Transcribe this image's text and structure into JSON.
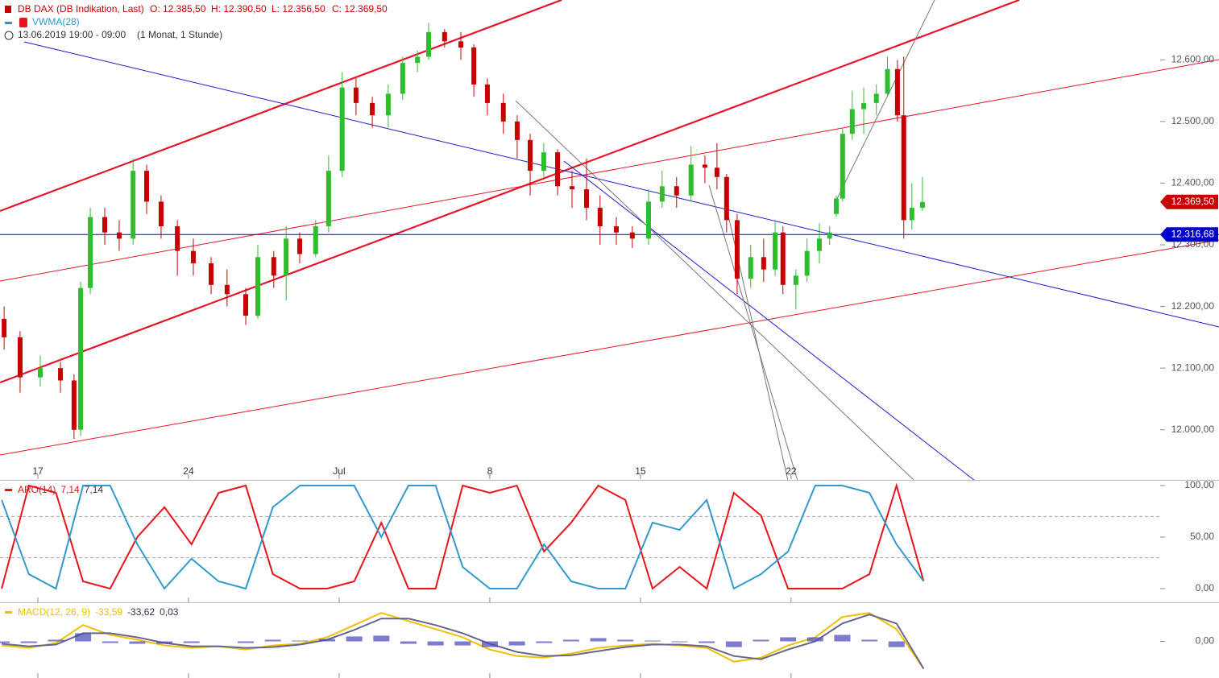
{
  "header": {
    "instrument": "DB DAX (DB Indikation, Last)",
    "open": "O: 12.385,50",
    "high": "H: 12.390,50",
    "low": "L: 12.356,50",
    "close": "C: 12.369,50",
    "overlay": "VWMA(28)",
    "range": "13.06.2019 19:00 - 09:00",
    "period": "(1 Monat, 1 Stunde)"
  },
  "chart_data": [
    {
      "type": "candlestick",
      "up_color": "#2ebd2e",
      "down_color": "#c80000",
      "xlim": [
        -1.26,
        39.2
      ],
      "ylim": [
        11920,
        12697
      ],
      "xticks": [
        {
          "value": 0,
          "label": "17"
        },
        {
          "value": 5,
          "label": "24"
        },
        {
          "value": 10,
          "label": "Jul"
        },
        {
          "value": 15,
          "label": "8"
        },
        {
          "value": 20,
          "label": "15"
        },
        {
          "value": 25,
          "label": "22"
        }
      ],
      "yticks": [
        {
          "value": 12000,
          "label": "12.000,00"
        },
        {
          "value": 12100,
          "label": "12.100,00"
        },
        {
          "value": 12200,
          "label": "12.200,00"
        },
        {
          "value": 12300,
          "label": "12.300,00"
        },
        {
          "value": 12400,
          "label": "12.400,00"
        },
        {
          "value": 12500,
          "label": "12.500,00"
        },
        {
          "value": 12600,
          "label": "12.600,00"
        }
      ],
      "hline": {
        "value": 12316.68,
        "label": "12.316,68",
        "color": "#0000cc"
      },
      "last": {
        "value": 12369.5,
        "label": "12.369,50",
        "color": "#c80000"
      },
      "x": [
        -1.12,
        -0.59,
        0.08,
        0.75,
        1.2,
        1.42,
        1.74,
        2.22,
        2.7,
        3.16,
        3.61,
        4.09,
        4.63,
        5.16,
        5.75,
        6.28,
        6.9,
        7.3,
        7.83,
        8.24,
        8.69,
        9.22,
        9.65,
        10.1,
        10.56,
        11.1,
        11.63,
        12.11,
        12.6,
        12.97,
        13.5,
        14.04,
        14.47,
        14.92,
        15.45,
        15.91,
        16.34,
        16.79,
        17.25,
        17.73,
        18.21,
        18.66,
        19.2,
        19.73,
        20.27,
        20.72,
        21.2,
        21.68,
        22.14,
        22.54,
        22.86,
        23.21,
        23.66,
        24.09,
        24.47,
        24.73,
        25.16,
        25.53,
        25.94,
        26.28,
        26.5,
        26.71,
        27.03,
        27.41,
        27.83,
        28.2,
        28.53,
        28.74,
        29.01,
        29.36
      ],
      "open": [
        12180,
        12150,
        12085,
        12100,
        12080,
        12000,
        12230,
        12345,
        12320,
        12310,
        12420,
        12370,
        12330,
        12290,
        12270,
        12235,
        12220,
        12185,
        12280,
        12250,
        12310,
        12285,
        12330,
        12420,
        12555,
        12530,
        12510,
        12545,
        12595,
        12605,
        12645,
        12630,
        12620,
        12560,
        12530,
        12500,
        12470,
        12420,
        12450,
        12395,
        12390,
        12360,
        12330,
        12320,
        12310,
        12370,
        12395,
        12380,
        12430,
        12425,
        12410,
        12340,
        12245,
        12280,
        12260,
        12320,
        12235,
        12250,
        12290,
        12310,
        12350,
        12375,
        12480,
        12520,
        12530,
        12545,
        12585,
        12510,
        12340,
        12360
      ],
      "high": [
        12200,
        12160,
        12120,
        12110,
        12090,
        12240,
        12360,
        12360,
        12340,
        12440,
        12430,
        12380,
        12340,
        12310,
        12280,
        12260,
        12230,
        12300,
        12290,
        12330,
        12320,
        12340,
        12445,
        12580,
        12570,
        12540,
        12560,
        12605,
        12615,
        12660,
        12650,
        12645,
        12625,
        12570,
        12545,
        12510,
        12480,
        12465,
        12455,
        12420,
        12440,
        12380,
        12345,
        12330,
        12390,
        12420,
        12410,
        12460,
        12445,
        12465,
        12415,
        12350,
        12300,
        12310,
        12340,
        12330,
        12260,
        12310,
        12335,
        12330,
        12380,
        12490,
        12550,
        12555,
        12560,
        12605,
        12600,
        12605,
        12400,
        12410
      ],
      "low": [
        12130,
        12060,
        12070,
        12060,
        11985,
        11990,
        12220,
        12300,
        12290,
        12300,
        12350,
        12310,
        12250,
        12250,
        12220,
        12200,
        12170,
        12180,
        12230,
        12210,
        12270,
        12280,
        12320,
        12410,
        12510,
        12490,
        12490,
        12535,
        12580,
        12600,
        12620,
        12600,
        12540,
        12510,
        12480,
        12440,
        12380,
        12410,
        12380,
        12360,
        12340,
        12300,
        12300,
        12295,
        12300,
        12360,
        12360,
        12370,
        12400,
        12390,
        12320,
        12220,
        12230,
        12240,
        12250,
        12220,
        12195,
        12240,
        12270,
        12300,
        12345,
        12370,
        12470,
        12480,
        12510,
        12540,
        12500,
        12310,
        12325,
        12355
      ],
      "close": [
        12150,
        12085,
        12100,
        12080,
        12000,
        12230,
        12345,
        12320,
        12310,
        12420,
        12370,
        12330,
        12290,
        12270,
        12235,
        12220,
        12185,
        12280,
        12250,
        12310,
        12285,
        12330,
        12420,
        12555,
        12530,
        12510,
        12545,
        12595,
        12605,
        12645,
        12630,
        12620,
        12560,
        12530,
        12500,
        12470,
        12420,
        12450,
        12395,
        12390,
        12360,
        12330,
        12320,
        12310,
        12370,
        12395,
        12380,
        12430,
        12425,
        12410,
        12340,
        12245,
        12280,
        12260,
        12320,
        12235,
        12250,
        12290,
        12310,
        12320,
        12375,
        12480,
        12520,
        12530,
        12545,
        12585,
        12510,
        12340,
        12360,
        12369.5
      ]
    },
    {
      "type": "line",
      "title": "ARO(14)",
      "ylim": [
        -13.3,
        104.7
      ],
      "levels": [
        30,
        70
      ],
      "yticks": [
        {
          "value": 0,
          "label": "0,00"
        },
        {
          "value": 50,
          "label": "50,00"
        },
        {
          "value": 100,
          "label": "100,00"
        }
      ],
      "x": [
        -1.2,
        -0.3,
        0.6,
        1.5,
        2.4,
        3.3,
        4.2,
        5.1,
        6,
        6.9,
        7.8,
        8.7,
        9.6,
        10.5,
        11.4,
        12.3,
        13.2,
        14.1,
        15,
        15.9,
        16.8,
        17.7,
        18.6,
        19.5,
        20.4,
        21.3,
        22.2,
        23.1,
        24,
        24.9,
        25.8,
        26.7,
        27.6,
        28.5,
        29.4
      ],
      "series": [
        {
          "color": "#e8141c",
          "value_label": "7,14",
          "values": [
            0,
            100,
            93,
            7,
            0,
            50,
            79,
            43,
            93,
            100,
            14,
            0,
            0,
            7,
            64,
            0,
            0,
            100,
            93,
            100,
            36,
            64,
            100,
            86,
            0,
            21,
            0,
            93,
            71,
            0,
            0,
            0,
            14,
            100,
            7.14
          ]
        },
        {
          "color": "#3399cc",
          "value_label": "7,14",
          "values": [
            86,
            14,
            0,
            100,
            100,
            43,
            0,
            29,
            7,
            0,
            79,
            100,
            100,
            100,
            50,
            100,
            100,
            21,
            0,
            0,
            43,
            7,
            0,
            0,
            64,
            57,
            86,
            0,
            14,
            36,
            100,
            100,
            93,
            43,
            7.14
          ]
        }
      ]
    },
    {
      "type": "macd",
      "title": "MACD(12, 26, 9)",
      "ylim": [
        -45,
        47
      ],
      "yticks": [
        {
          "value": 0,
          "label": "0,00"
        }
      ],
      "x": [
        -1.2,
        -0.3,
        0.6,
        1.5,
        2.4,
        3.3,
        4.2,
        5.1,
        6,
        6.9,
        7.8,
        8.7,
        9.6,
        10.5,
        11.4,
        12.3,
        13.2,
        14.1,
        15,
        15.9,
        16.8,
        17.7,
        18.6,
        19.5,
        20.4,
        21.3,
        22.2,
        23.1,
        24,
        24.9,
        25.8,
        26.7,
        27.6,
        28.5,
        29.4
      ],
      "series": [
        {
          "kind": "line",
          "color": "#f0c000",
          "value_label": "-33,59",
          "values": [
            -5,
            -8,
            -2,
            20,
            8,
            2,
            -5,
            -8,
            -6,
            -10,
            -5,
            -3,
            5,
            20,
            35,
            25,
            15,
            5,
            -10,
            -18,
            -20,
            -15,
            -8,
            -5,
            -3,
            -5,
            -8,
            -25,
            -20,
            -5,
            5,
            30,
            35,
            15,
            -33.59
          ]
        },
        {
          "kind": "line",
          "color": "#666688",
          "value_label": "-33,62",
          "values": [
            -3,
            -6,
            -4,
            10,
            10,
            5,
            -2,
            -6,
            -6,
            -8,
            -7,
            -4,
            2,
            14,
            28,
            28,
            20,
            10,
            -3,
            -13,
            -18,
            -17,
            -12,
            -7,
            -4,
            -4,
            -6,
            -18,
            -22,
            -10,
            0,
            22,
            33,
            22,
            -33.62
          ]
        },
        {
          "kind": "bar",
          "color": "#4444bb",
          "value_label": "0,03",
          "values": [
            -2,
            -2,
            2,
            10,
            -2,
            -3,
            -3,
            -2,
            0,
            -2,
            2,
            1,
            3,
            6,
            7,
            -3,
            -5,
            -5,
            -7,
            -5,
            -2,
            2,
            4,
            2,
            1,
            -1,
            -2,
            -7,
            2,
            5,
            5,
            8,
            2,
            -7,
            0.03
          ]
        }
      ]
    }
  ]
}
